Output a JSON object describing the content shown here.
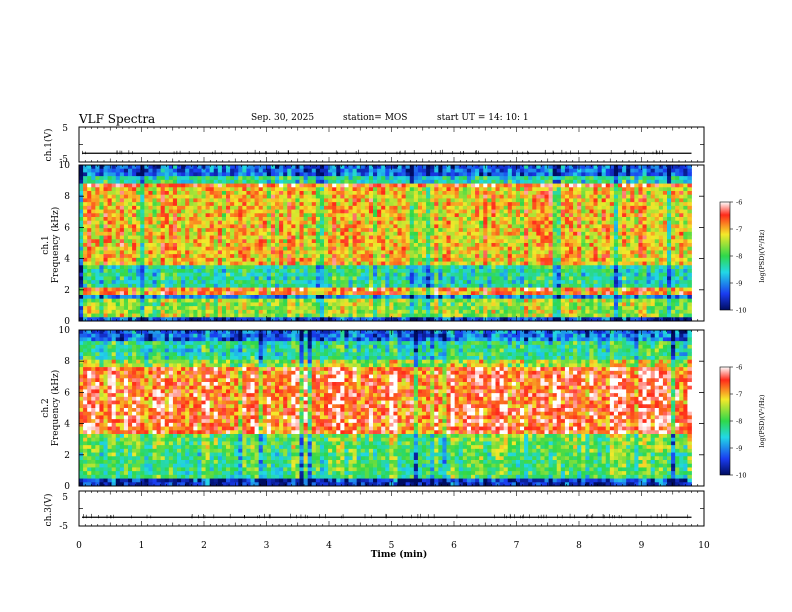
{
  "header": {
    "title": "VLF Spectra",
    "date": "Sep. 30, 2025",
    "station": "station= MOS",
    "start": "start  UT =   14: 10: 1"
  },
  "chart_data": [
    {
      "type": "line",
      "panel": "ch1-voltage",
      "ylabel": "ch.1(V)",
      "ylim": [
        -5,
        5
      ],
      "yticks": [
        "5",
        "-5"
      ],
      "baseline_value": -2.5
    },
    {
      "type": "heatmap",
      "panel": "ch1-spectrogram",
      "ylabel_top": "ch.1",
      "ylabel": "Frequency  (kHz)",
      "ylim": [
        0,
        10
      ],
      "yticks": [
        "0",
        "2",
        "4",
        "6",
        "8",
        "10"
      ],
      "dominant_band_khz": [
        4,
        8.8
      ],
      "colorbar": {
        "label": "log(PSD)(V²/Hz)",
        "range": [
          -10,
          -6
        ],
        "ticks": [
          "-6",
          "-7",
          "-8",
          "-9",
          "-10"
        ]
      }
    },
    {
      "type": "heatmap",
      "panel": "ch2-spectrogram",
      "ylabel_top": "ch.2",
      "ylabel": "Frequency  (kHz)",
      "ylim": [
        0,
        10
      ],
      "yticks": [
        "0",
        "2",
        "4",
        "6",
        "8",
        "10"
      ],
      "dominant_band_khz": [
        3.5,
        7.5
      ],
      "colorbar": {
        "label": "log(PSD)(V²/Hz)",
        "range": [
          -10,
          -6
        ],
        "ticks": [
          "-6",
          "-7",
          "-8",
          "-9",
          "-10"
        ]
      }
    },
    {
      "type": "line",
      "panel": "ch3-voltage",
      "ylabel": "ch.3(V)",
      "ylim": [
        -5,
        5
      ],
      "yticks": [
        "5",
        "-5"
      ],
      "baseline_value": -2.5,
      "xlabel": "Time  (min)",
      "xlim": [
        0,
        10
      ],
      "xticks": [
        "0",
        "1",
        "2",
        "3",
        "4",
        "5",
        "6",
        "7",
        "8",
        "9",
        "10"
      ],
      "data_end_min": 9.8
    }
  ],
  "colors": {
    "red": "#ff2a1a",
    "yellow": "#f4e92a",
    "green": "#2fd84a",
    "cyan": "#22d8e6",
    "blue": "#1a3cf0",
    "navy": "#000c60"
  }
}
